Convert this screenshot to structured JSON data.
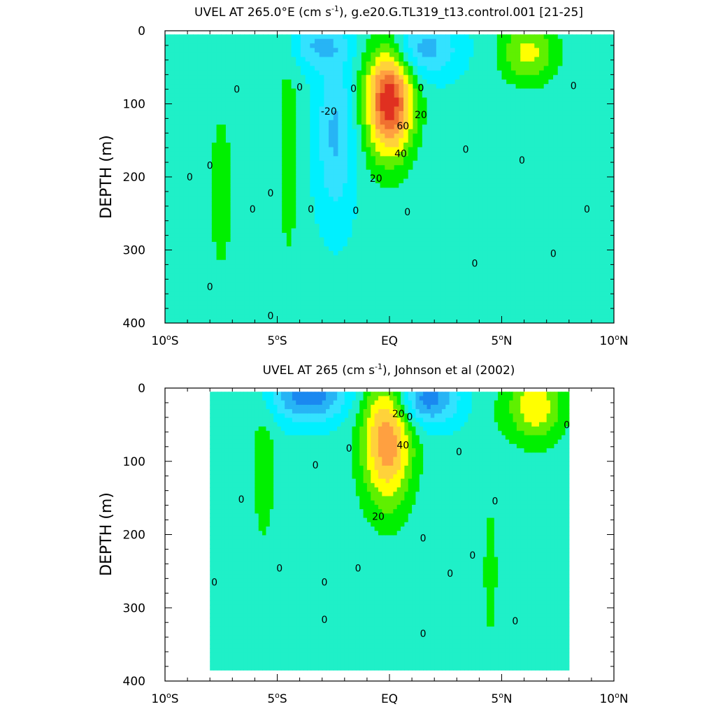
{
  "colors": {
    "frame": "#000000",
    "levels": {
      "-40": "#1a88f0",
      "-30": "#27b4f5",
      "-20": "#33e2ff",
      "-10": "#00f0ff",
      "0": "#1ff0c8",
      "10": "#00f000",
      "20": "#5ff000",
      "30": "#ffff00",
      "40": "#ffd23a",
      "50": "#ffa040",
      "60": "#f07030",
      "70": "#e03020"
    }
  },
  "chart_data": [
    {
      "type": "heatmap",
      "title_main": "UVEL AT 265.0°E (cm s",
      "title_sup": "-1",
      "title_rest": "), g.e20.G.TL319_t13.control.001 [21-25]",
      "xlabel": "",
      "ylabel": "DEPTH (m)",
      "xlim": [
        -10,
        10
      ],
      "ylim": [
        0,
        400
      ],
      "y_inverted": true,
      "contour_interval": 10,
      "x_ticks": [
        {
          "value": -10,
          "num": "10",
          "sup": "o",
          "hemi": "S"
        },
        {
          "value": -5,
          "num": "5",
          "sup": "o",
          "hemi": "S"
        },
        {
          "value": 0,
          "num": "EQ",
          "sup": "",
          "hemi": ""
        },
        {
          "value": 5,
          "num": "5",
          "sup": "o",
          "hemi": "N"
        },
        {
          "value": 10,
          "num": "10",
          "sup": "o",
          "hemi": "N"
        }
      ],
      "y_ticks": [
        "0",
        "100",
        "200",
        "300",
        "400"
      ],
      "data_extent": {
        "lon": [
          -10,
          10
        ],
        "depth": [
          5,
          400
        ]
      },
      "features": [
        {
          "kind": "equatorial undercurrent core",
          "lon": 0.0,
          "depth": 95,
          "max": 75,
          "sx": 0.75,
          "sy": 55
        },
        {
          "kind": "westward flow",
          "lon": -2.4,
          "depth": 140,
          "min": -25,
          "sx": 0.6,
          "sy": 80
        },
        {
          "kind": "westward flow",
          "lon": 1.4,
          "depth": 25,
          "min": -30,
          "sx": 1.1,
          "sy": 28
        },
        {
          "kind": "westward surface flow",
          "lon": -3.2,
          "depth": 20,
          "min": -22,
          "sx": 0.9,
          "sy": 22
        },
        {
          "kind": "eastward flow",
          "lon": 6.2,
          "depth": 30,
          "max": 30,
          "sx": 0.9,
          "sy": 30
        },
        {
          "kind": "eastward flow",
          "lon": -4.5,
          "depth": 170,
          "max": 13,
          "sx": 0.35,
          "sy": 110
        },
        {
          "kind": "eastward flow",
          "lon": -7.5,
          "depth": 220,
          "max": 8,
          "sx": 0.9,
          "sy": 180
        }
      ],
      "contour_labels": [
        {
          "text": "0",
          "lon": -6.8,
          "depth": 80
        },
        {
          "text": "0",
          "lon": -4.0,
          "depth": 77
        },
        {
          "text": "0",
          "lon": -8.0,
          "depth": 184
        },
        {
          "text": "0",
          "lon": -8.9,
          "depth": 200
        },
        {
          "text": "0",
          "lon": -5.3,
          "depth": 222
        },
        {
          "text": "0",
          "lon": -6.1,
          "depth": 244
        },
        {
          "text": "0",
          "lon": -3.5,
          "depth": 244
        },
        {
          "text": "0",
          "lon": -8.0,
          "depth": 350
        },
        {
          "text": "0",
          "lon": -5.3,
          "depth": 390
        },
        {
          "text": "0",
          "lon": -1.6,
          "depth": 79
        },
        {
          "text": "0",
          "lon": -1.5,
          "depth": 246
        },
        {
          "text": "0",
          "lon": 0.8,
          "depth": 248
        },
        {
          "text": "0",
          "lon": 3.4,
          "depth": 162
        },
        {
          "text": "0",
          "lon": 3.8,
          "depth": 318
        },
        {
          "text": "0",
          "lon": 5.9,
          "depth": 177
        },
        {
          "text": "0",
          "lon": 8.2,
          "depth": 75
        },
        {
          "text": "0",
          "lon": 8.8,
          "depth": 244
        },
        {
          "text": "0",
          "lon": 7.3,
          "depth": 305
        },
        {
          "text": "-20",
          "lon": -2.7,
          "depth": 110
        },
        {
          "text": "20",
          "lon": 1.4,
          "depth": 115
        },
        {
          "text": "60",
          "lon": 0.6,
          "depth": 130
        },
        {
          "text": "40",
          "lon": 0.5,
          "depth": 168
        },
        {
          "text": "20",
          "lon": -0.6,
          "depth": 202
        },
        {
          "text": "0",
          "lon": 1.4,
          "depth": 78
        }
      ]
    },
    {
      "type": "heatmap",
      "title_main": "UVEL AT 265 (cm s",
      "title_sup": "-1",
      "title_rest": "), Johnson et al (2002)",
      "xlabel": "",
      "ylabel": "DEPTH (m)",
      "xlim": [
        -10,
        10
      ],
      "ylim": [
        0,
        400
      ],
      "y_inverted": true,
      "contour_interval": 10,
      "x_ticks": [
        {
          "value": -10,
          "num": "10",
          "sup": "o",
          "hemi": "S"
        },
        {
          "value": -5,
          "num": "5",
          "sup": "o",
          "hemi": "S"
        },
        {
          "value": 0,
          "num": "EQ",
          "sup": "",
          "hemi": ""
        },
        {
          "value": 5,
          "num": "5",
          "sup": "o",
          "hemi": "N"
        },
        {
          "value": 10,
          "num": "10",
          "sup": "o",
          "hemi": "N"
        }
      ],
      "y_ticks": [
        "0",
        "100",
        "200",
        "300",
        "400"
      ],
      "data_extent": {
        "lon": [
          -8,
          8
        ],
        "depth": [
          5,
          385
        ]
      },
      "features": [
        {
          "kind": "equatorial undercurrent core",
          "lon": -0.1,
          "depth": 70,
          "max": 55,
          "sx": 0.8,
          "sy": 65
        },
        {
          "kind": "westward surface flow",
          "lon": 1.6,
          "depth": 15,
          "min": -40,
          "sx": 1.0,
          "sy": 25
        },
        {
          "kind": "westward surface flow",
          "lon": -3.6,
          "depth": 10,
          "min": -40,
          "sx": 1.2,
          "sy": 25
        },
        {
          "kind": "eastward flow",
          "lon": 6.5,
          "depth": 25,
          "max": 35,
          "sx": 0.9,
          "sy": 35
        },
        {
          "kind": "eastward flow",
          "lon": -5.6,
          "depth": 110,
          "max": 13,
          "sx": 0.4,
          "sy": 80
        },
        {
          "kind": "eastward flow",
          "lon": 4.5,
          "depth": 250,
          "max": 8,
          "sx": 0.5,
          "sy": 150
        }
      ],
      "contour_labels": [
        {
          "text": "0",
          "lon": -1.8,
          "depth": 82
        },
        {
          "text": "0",
          "lon": -3.3,
          "depth": 105
        },
        {
          "text": "0",
          "lon": -6.6,
          "depth": 152
        },
        {
          "text": "0",
          "lon": -7.8,
          "depth": 265
        },
        {
          "text": "0",
          "lon": -4.9,
          "depth": 246
        },
        {
          "text": "0",
          "lon": -2.9,
          "depth": 265
        },
        {
          "text": "0",
          "lon": -2.9,
          "depth": 316
        },
        {
          "text": "0",
          "lon": -1.4,
          "depth": 246
        },
        {
          "text": "0",
          "lon": 1.5,
          "depth": 205
        },
        {
          "text": "0",
          "lon": 1.5,
          "depth": 335
        },
        {
          "text": "0",
          "lon": 2.7,
          "depth": 253
        },
        {
          "text": "0",
          "lon": 3.1,
          "depth": 87
        },
        {
          "text": "0",
          "lon": 3.7,
          "depth": 228
        },
        {
          "text": "0",
          "lon": 4.7,
          "depth": 154
        },
        {
          "text": "0",
          "lon": 5.6,
          "depth": 318
        },
        {
          "text": "0",
          "lon": 7.9,
          "depth": 50
        },
        {
          "text": "20",
          "lon": 0.4,
          "depth": 35
        },
        {
          "text": "0",
          "lon": 0.9,
          "depth": 39
        },
        {
          "text": "40",
          "lon": 0.6,
          "depth": 78
        },
        {
          "text": "20",
          "lon": -0.5,
          "depth": 175
        }
      ]
    }
  ]
}
